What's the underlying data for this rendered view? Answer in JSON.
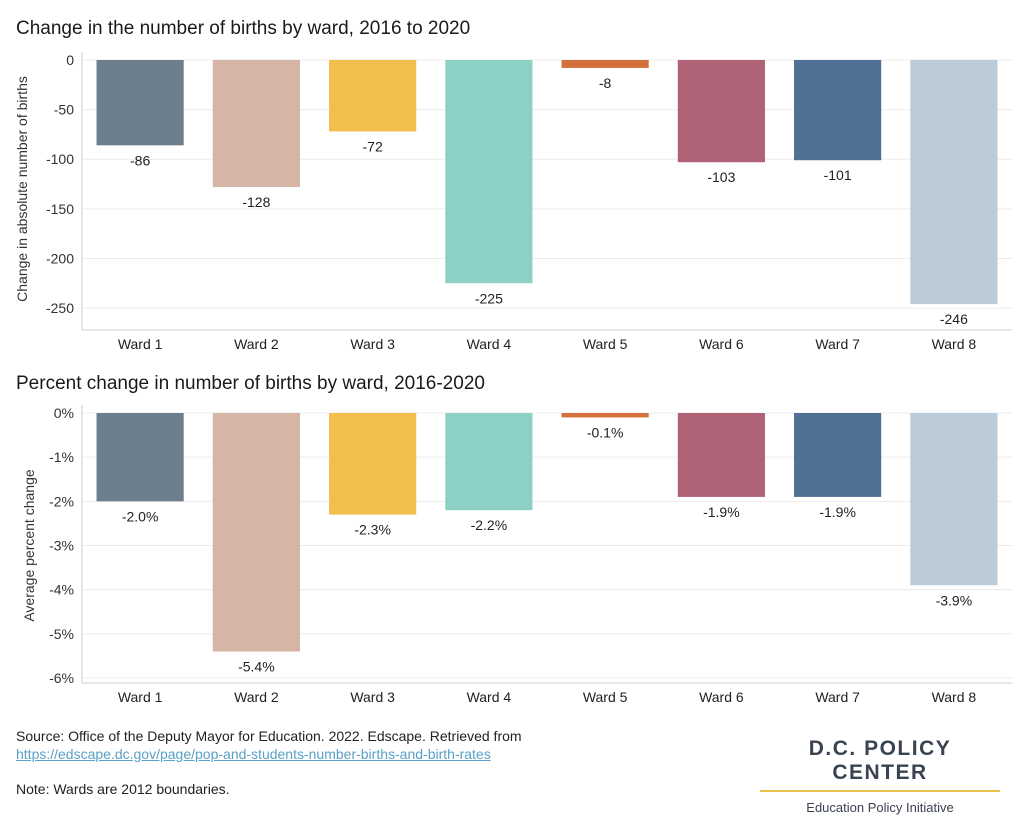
{
  "chart_data": [
    {
      "type": "bar",
      "title": "Change in the number of births by ward, 2016 to 2020",
      "ylabel": "Change in absolute number of births",
      "xlabel": "",
      "categories": [
        "Ward 1",
        "Ward 2",
        "Ward 3",
        "Ward 4",
        "Ward 5",
        "Ward 6",
        "Ward 7",
        "Ward 8"
      ],
      "values": [
        -86,
        -128,
        -72,
        -225,
        -8,
        -103,
        -101,
        -246
      ],
      "value_labels": [
        "-86",
        "-128",
        "-72",
        "-225",
        "-8",
        "-103",
        "-101",
        "-246"
      ],
      "ylim": [
        -260,
        0
      ],
      "yticks": [
        0,
        -50,
        -100,
        -150,
        -200,
        -250
      ],
      "ytick_labels": [
        "0",
        "-50",
        "-100",
        "-150",
        "-200",
        "-250"
      ],
      "grid": true,
      "legend": "none"
    },
    {
      "type": "bar",
      "title": "Percent change in number of births by ward, 2016-2020",
      "ylabel": "Average percent change",
      "xlabel": "",
      "categories": [
        "Ward 1",
        "Ward 2",
        "Ward 3",
        "Ward 4",
        "Ward 5",
        "Ward 6",
        "Ward 7",
        "Ward 8"
      ],
      "values": [
        -2.0,
        -5.4,
        -2.3,
        -2.2,
        -0.1,
        -1.9,
        -1.9,
        -3.9
      ],
      "value_labels": [
        "-2.0%",
        "-5.4%",
        "-2.3%",
        "-2.2%",
        "-0.1%",
        "-1.9%",
        "-1.9%",
        "-3.9%"
      ],
      "ylim": [
        -6,
        0
      ],
      "yticks": [
        0,
        -1,
        -2,
        -3,
        -4,
        -5,
        -6
      ],
      "ytick_labels": [
        "0%",
        "-1%",
        "-2%",
        "-3%",
        "-4%",
        "-5%",
        "-6%"
      ],
      "grid": true,
      "legend": "none"
    }
  ],
  "colors": [
    "#6d7e8c",
    "#d6b4a6",
    "#f2bf4e",
    "#8dd0c6",
    "#d4703a",
    "#b06276",
    "#4f7094",
    "#bccbd8"
  ],
  "footer": {
    "source_text": "Source: Office of the Deputy Mayor for Education. 2022. Edscape. Retrieved from",
    "source_link": "https://edscape.dc.gov/page/pop-and-students-number-births-and-birth-rates",
    "note": "Note: Wards are 2012 boundaries."
  },
  "logo": {
    "main": "D.C. POLICY CENTER",
    "sub": "Education Policy Initiative"
  }
}
